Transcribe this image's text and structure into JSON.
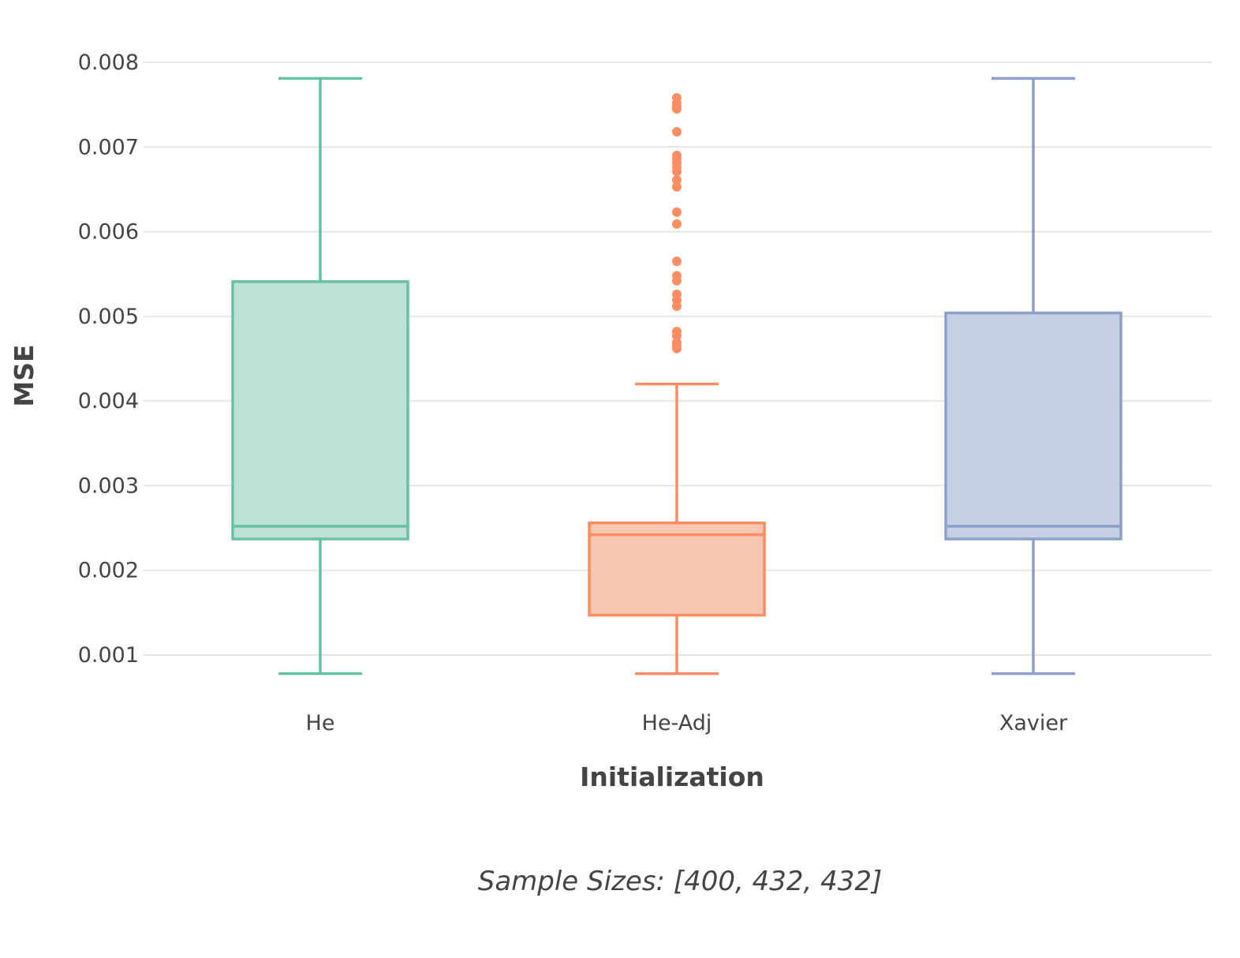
{
  "chart_data": {
    "type": "box",
    "xlabel": "Initialization",
    "ylabel": "MSE",
    "annotation": "Sample Sizes: [400, 432, 432]",
    "ylim": [
      0.00055,
      0.0082
    ],
    "yticks": [
      "0.001",
      "0.002",
      "0.003",
      "0.004",
      "0.005",
      "0.006",
      "0.007",
      "0.008"
    ],
    "ytick_values": [
      0.001,
      0.002,
      0.003,
      0.004,
      0.005,
      0.006,
      0.007,
      0.008
    ],
    "grid": true,
    "categories": [
      "He",
      "He-Adj",
      "Xavier"
    ],
    "series": [
      {
        "category": "He",
        "color": "#66c2a5",
        "fill": "#bfe0d5",
        "whisker_low": 0.00078,
        "q1": 0.00237,
        "median": 0.00252,
        "q3": 0.00541,
        "whisker_high": 0.00781,
        "outliers": []
      },
      {
        "category": "He-Adj",
        "color": "#fc8d62",
        "fill": "#f7c6b3",
        "whisker_low": 0.00078,
        "q1": 0.00147,
        "median": 0.00242,
        "q3": 0.00256,
        "whisker_high": 0.0042,
        "outliers": [
          0.00758,
          0.00752,
          0.00748,
          0.00745,
          0.00718,
          0.0069,
          0.00686,
          0.00681,
          0.00676,
          0.00671,
          0.00661,
          0.00653,
          0.00623,
          0.00609,
          0.00565,
          0.00548,
          0.00542,
          0.00526,
          0.00519,
          0.00512,
          0.00482,
          0.00477,
          0.00469,
          0.00465,
          0.00462
        ]
      },
      {
        "category": "Xavier",
        "color": "#8da0cb",
        "fill": "#c7cfe3",
        "whisker_low": 0.00078,
        "q1": 0.00237,
        "median": 0.00252,
        "q3": 0.00504,
        "whisker_high": 0.00781,
        "outliers": []
      }
    ]
  }
}
